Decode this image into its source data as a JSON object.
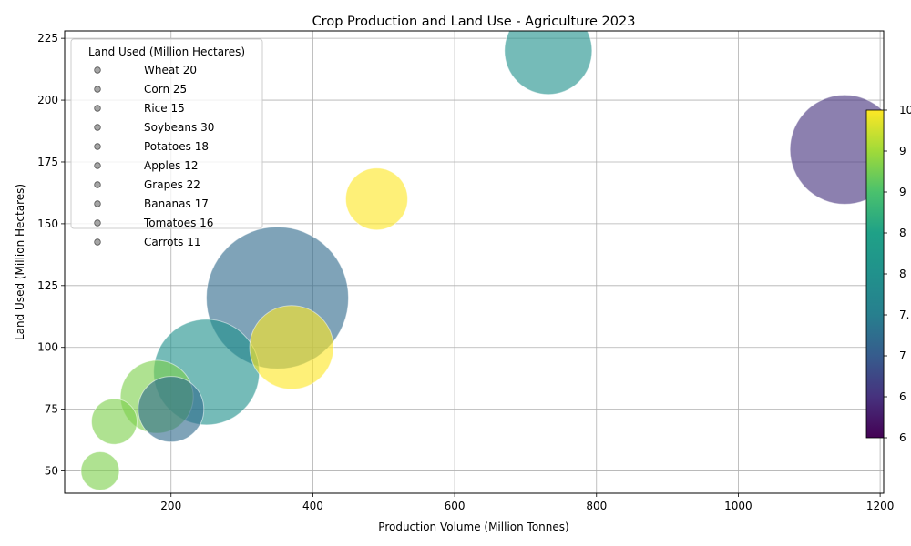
{
  "chart_data": {
    "type": "scatter",
    "title": "Crop Production and Land Use - Agriculture 2023",
    "xlabel": "Production Volume (Million Tonnes)",
    "ylabel": "Land Used (Million Hectares)",
    "xlim": [
      50,
      1205
    ],
    "ylim": [
      41,
      228
    ],
    "xticks": [
      200,
      400,
      600,
      800,
      1000,
      1200
    ],
    "yticks": [
      50,
      75,
      100,
      125,
      150,
      175,
      200,
      225
    ],
    "grid": true,
    "legend_title": "Land Used (Million Hectares)",
    "legend_position": "top-left",
    "legend_entries": [
      "Wheat 20",
      "Corn 25",
      "Rice 15",
      "Soybeans 30",
      "Potatoes 18",
      "Apples 12",
      "Grapes 22",
      "Bananas 17",
      "Tomatoes 16",
      "Carrots 11"
    ],
    "colorbar": {
      "colormap": "viridis",
      "range": [
        60,
        100
      ],
      "tick_labels": [
        "6",
        "6",
        "7",
        "7.",
        "8",
        "8",
        "9",
        "9",
        "10"
      ]
    },
    "points": [
      {
        "x": 1150,
        "y": 180,
        "size": 60,
        "color_value": 65
      },
      {
        "x": 732,
        "y": 220,
        "size": 48,
        "color_value": 80
      },
      {
        "x": 490,
        "y": 160,
        "size": 34,
        "color_value": 100
      },
      {
        "x": 350,
        "y": 120,
        "size": 78,
        "color_value": 72
      },
      {
        "x": 370,
        "y": 100,
        "size": 46,
        "color_value": 100
      },
      {
        "x": 250,
        "y": 90,
        "size": 58,
        "color_value": 80
      },
      {
        "x": 180,
        "y": 80,
        "size": 40,
        "color_value": 93
      },
      {
        "x": 200,
        "y": 75,
        "size": 36,
        "color_value": 72
      },
      {
        "x": 120,
        "y": 70,
        "size": 25,
        "color_value": 93
      },
      {
        "x": 100,
        "y": 50,
        "size": 21,
        "color_value": 93
      }
    ]
  }
}
